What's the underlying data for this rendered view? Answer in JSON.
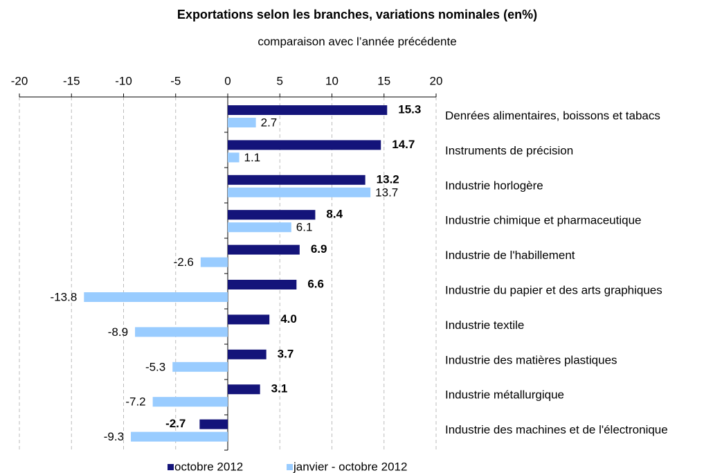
{
  "chart_data": {
    "type": "hbar",
    "title": "Exportations selon les branches, variations nominales (en%)",
    "subtitle": "comparaison avec l’année précédente",
    "categories": [
      "Denrées alimentaires, boissons et tabacs",
      "Instruments de précision",
      "Industrie horlogère",
      "Industrie chimique et pharmaceutique",
      "Industrie de l'habillement",
      "Industrie du papier et des arts graphiques",
      "Industrie textile",
      "Industrie des matières plastiques",
      "Industrie métallurgique",
      "Industrie des machines et de l'électronique"
    ],
    "series": [
      {
        "name": "octobre 2012",
        "color": "#14147a",
        "values": [
          15.3,
          14.7,
          13.2,
          8.4,
          6.9,
          6.6,
          4.0,
          3.7,
          3.1,
          -2.7
        ],
        "value_labels": [
          "15.3",
          "14.7",
          "13.2",
          "8.4",
          "6.9",
          "6.6",
          "4.0",
          "3.7",
          "3.1",
          "-2.7"
        ]
      },
      {
        "name": "janvier - octobre 2012",
        "color": "#99ccff",
        "values": [
          2.7,
          1.1,
          13.7,
          6.1,
          -2.6,
          -13.8,
          -8.9,
          -5.3,
          -7.2,
          -9.3
        ],
        "value_labels": [
          "2.7",
          "1.1",
          "13.7",
          "6.1",
          "-2.6",
          "-13.8",
          "-8.9",
          "-5.3",
          "-7.2",
          "-9.3"
        ]
      }
    ],
    "xlim": [
      -20,
      20
    ],
    "xticks": [
      -20,
      -15,
      -10,
      -5,
      0,
      5,
      10,
      15,
      20
    ],
    "grid": true,
    "legend": "bottom"
  }
}
